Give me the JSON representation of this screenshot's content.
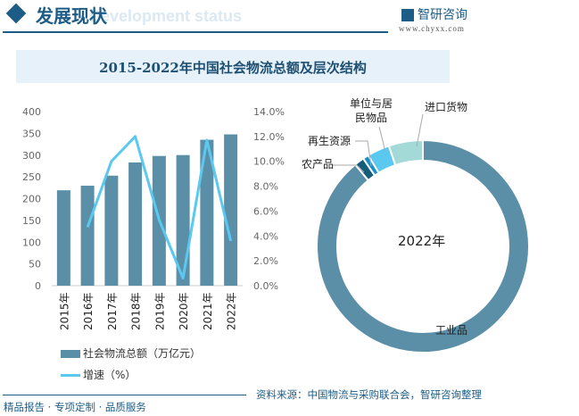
{
  "header": {
    "title": "发展现状",
    "subtitle_bg": "Development status",
    "logo_text": "智研咨询",
    "url": "www.chyxx.com"
  },
  "chart_title": "2015-2022年中国社会物流总额及层次结构",
  "chart_data": [
    {
      "type": "bar+line",
      "categories": [
        "2015年",
        "2016年",
        "2017年",
        "2018年",
        "2019年",
        "2020年",
        "2021年",
        "2022年"
      ],
      "series": [
        {
          "name": "社会物流总额（万亿元）",
          "type": "bar",
          "axis": "left",
          "values": [
            219.2,
            229.7,
            252.8,
            283.1,
            298.0,
            300.1,
            335.2,
            347.6
          ],
          "color": "#5b8fa8"
        },
        {
          "name": "增速（%）",
          "type": "line",
          "axis": "right",
          "values": [
            null,
            4.7,
            10.0,
            12.0,
            5.3,
            0.6,
            11.7,
            3.6
          ],
          "color": "#5bc8f0"
        }
      ],
      "ylim": [
        0,
        400
      ],
      "yticks": [
        "0",
        "50",
        "100",
        "150",
        "200",
        "250",
        "300",
        "350",
        "400"
      ],
      "y2lim": [
        0,
        14
      ],
      "y2ticks": [
        "0.0%",
        "2.0%",
        "4.0%",
        "6.0%",
        "8.0%",
        "10.0%",
        "12.0%",
        "14.0%"
      ],
      "legend": "bottom",
      "grid": false
    },
    {
      "type": "pie",
      "donut": true,
      "center_label": "2022年",
      "slices": [
        {
          "label": "工业品",
          "value": 89.0,
          "color": "#5b8fa8"
        },
        {
          "label": "农产品",
          "value": 1.5,
          "color": "#155e7a"
        },
        {
          "label": "再生资源",
          "value": 0.9,
          "color": "#1a8fc9"
        },
        {
          "label": "单位与居民物品",
          "value": 3.4,
          "color": "#5bc8f0"
        },
        {
          "label": "进口货物",
          "value": 5.2,
          "color": "#a3d9d6"
        }
      ]
    }
  ],
  "labels": {
    "industrial": "工业品",
    "agri": "农产品",
    "recycle": "再生资源",
    "household_1": "单位与居",
    "household_2": "民物品",
    "import_1": "进口",
    "import_2": "货物"
  },
  "legend": {
    "bar": "社会物流总额（万亿元）",
    "line": "增速（%）"
  },
  "footer": {
    "source": "资料来源：中国物流与采购联合会，智研咨询整理",
    "slogan": "精品报告 · 专项定制 · 品质服务"
  }
}
